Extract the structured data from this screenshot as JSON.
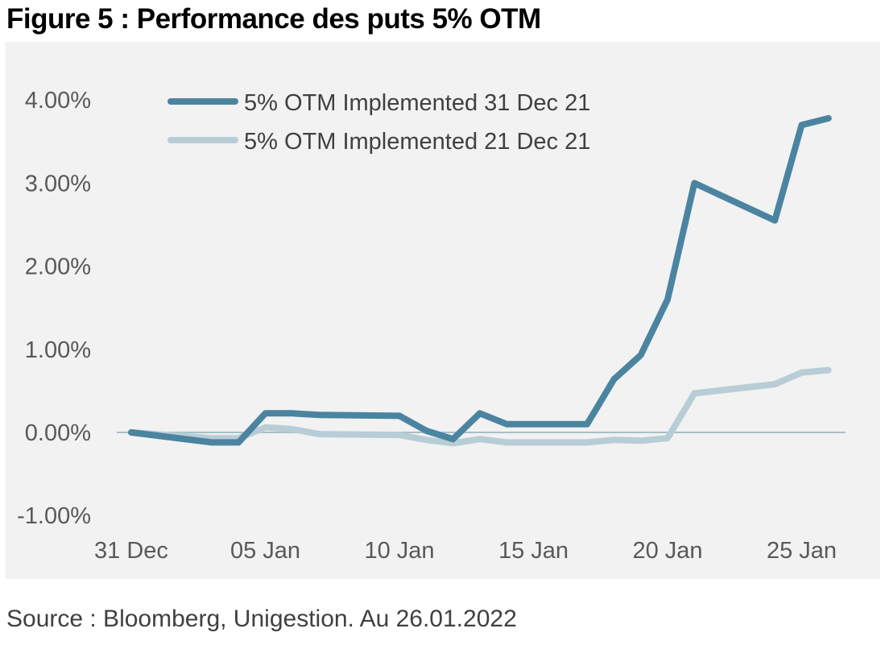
{
  "figure_title": "Figure 5 : Performance des puts 5% OTM",
  "source": "Source : Bloomberg, Unigestion. Au 26.01.2022",
  "colors": {
    "panel_background": "#f2f2f2",
    "zero_line": "#a8c0c8",
    "series_dark": "#4b84a0",
    "series_light": "#b8cdd5"
  },
  "chart_data": {
    "type": "line",
    "xlabel": "",
    "ylabel": "",
    "x_ticks": [
      "31 Dec",
      "05 Jan",
      "10 Jan",
      "15 Jan",
      "20 Jan",
      "25 Jan"
    ],
    "y_ticks": [
      "4.00%",
      "3.00%",
      "2.00%",
      "1.00%",
      "0.00%",
      "-1.00%"
    ],
    "ylim": [
      -1.0,
      4.0
    ],
    "x_start_date": "2021-12-31",
    "legend_position": "top-left",
    "grid": false,
    "series": [
      {
        "name": "5% OTM Implemented 31 Dec 21",
        "color": "#4b84a0",
        "points": [
          [
            "2021-12-31",
            0.0
          ],
          [
            "2022-01-03",
            -0.12
          ],
          [
            "2022-01-04",
            -0.12
          ],
          [
            "2022-01-05",
            0.23
          ],
          [
            "2022-01-06",
            0.23
          ],
          [
            "2022-01-07",
            0.21
          ],
          [
            "2022-01-10",
            0.2
          ],
          [
            "2022-01-11",
            0.02
          ],
          [
            "2022-01-12",
            -0.08
          ],
          [
            "2022-01-13",
            0.23
          ],
          [
            "2022-01-14",
            0.1
          ],
          [
            "2022-01-17",
            0.1
          ],
          [
            "2022-01-18",
            0.64
          ],
          [
            "2022-01-19",
            0.93
          ],
          [
            "2022-01-20",
            1.6
          ],
          [
            "2022-01-21",
            3.0
          ],
          [
            "2022-01-24",
            2.55
          ],
          [
            "2022-01-25",
            3.7
          ],
          [
            "2022-01-26",
            3.78
          ]
        ]
      },
      {
        "name": "5% OTM Implemented 21 Dec 21",
        "color": "#b8cdd5",
        "points": [
          [
            "2021-12-31",
            0.0
          ],
          [
            "2022-01-03",
            -0.07
          ],
          [
            "2022-01-04",
            -0.07
          ],
          [
            "2022-01-05",
            0.06
          ],
          [
            "2022-01-06",
            0.04
          ],
          [
            "2022-01-07",
            -0.02
          ],
          [
            "2022-01-10",
            -0.03
          ],
          [
            "2022-01-11",
            -0.09
          ],
          [
            "2022-01-12",
            -0.13
          ],
          [
            "2022-01-13",
            -0.08
          ],
          [
            "2022-01-14",
            -0.12
          ],
          [
            "2022-01-17",
            -0.12
          ],
          [
            "2022-01-18",
            -0.09
          ],
          [
            "2022-01-19",
            -0.1
          ],
          [
            "2022-01-20",
            -0.07
          ],
          [
            "2022-01-21",
            0.47
          ],
          [
            "2022-01-24",
            0.58
          ],
          [
            "2022-01-25",
            0.72
          ],
          [
            "2022-01-26",
            0.75
          ]
        ]
      }
    ]
  }
}
